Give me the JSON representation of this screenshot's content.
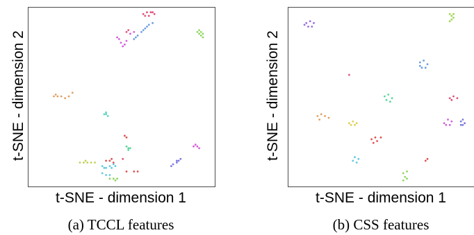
{
  "chart_data": [
    {
      "type": "scatter",
      "xlabel": "t-SNE - dimension 1",
      "ylabel": "t-SNE - dimension 2",
      "caption": "(a) TCCL features",
      "xlim": [
        0,
        100
      ],
      "ylim": [
        0,
        100
      ],
      "grid": false,
      "series": [
        {
          "color": "#e0507a",
          "points": [
            [
              62,
              96
            ],
            [
              64,
              97
            ],
            [
              66,
              97
            ],
            [
              68,
              96
            ],
            [
              65,
              95
            ],
            [
              63,
              95
            ],
            [
              67,
              97
            ]
          ]
        },
        {
          "color": "#6a9ee0",
          "points": [
            [
              57,
              82
            ],
            [
              59,
              84
            ],
            [
              61,
              86
            ],
            [
              63,
              88
            ],
            [
              65,
              90
            ],
            [
              67,
              91
            ],
            [
              58,
              83
            ],
            [
              62,
              87
            ],
            [
              64,
              89
            ]
          ]
        },
        {
          "color": "#d35fd8",
          "points": [
            [
              48,
              83
            ],
            [
              50,
              80
            ],
            [
              52,
              79
            ],
            [
              53,
              81
            ],
            [
              55,
              85
            ],
            [
              57,
              86
            ],
            [
              49,
              82
            ],
            [
              51,
              78
            ]
          ]
        },
        {
          "color": "#e0507a",
          "points": [
            [
              53,
              86
            ],
            [
              54,
              87
            ]
          ]
        },
        {
          "color": "#8fd660",
          "points": [
            [
              91,
              86
            ],
            [
              92,
              85
            ],
            [
              93,
              84
            ],
            [
              94,
              83
            ],
            [
              92,
              87
            ],
            [
              93,
              86
            ],
            [
              94,
              85
            ]
          ]
        },
        {
          "color": "#e0a060",
          "points": [
            [
              14,
              50
            ],
            [
              16,
              50
            ],
            [
              18,
              50
            ],
            [
              20,
              49
            ],
            [
              22,
              50
            ],
            [
              24,
              52
            ],
            [
              15,
              51
            ]
          ]
        },
        {
          "color": "#62d6c0",
          "points": [
            [
              41,
              40
            ],
            [
              42,
              40
            ],
            [
              43,
              39
            ],
            [
              42,
              41
            ]
          ]
        },
        {
          "color": "#e05050",
          "points": [
            [
              52,
              28
            ],
            [
              53,
              27
            ]
          ]
        },
        {
          "color": "#5ad6a0",
          "points": [
            [
              53,
              22
            ],
            [
              54,
              21
            ],
            [
              55,
              21
            ],
            [
              54,
              20
            ]
          ]
        },
        {
          "color": "#e0507a",
          "points": [
            [
              51,
              15
            ]
          ]
        },
        {
          "color": "#c0d050",
          "points": [
            [
              28,
              13
            ],
            [
              30,
              13
            ],
            [
              32,
              13
            ],
            [
              34,
              13
            ],
            [
              36,
              13
            ],
            [
              31,
              14
            ]
          ]
        },
        {
          "color": "#62c8e0",
          "points": [
            [
              40,
              11
            ],
            [
              42,
              10
            ],
            [
              44,
              11
            ],
            [
              46,
              12
            ],
            [
              47,
              11
            ],
            [
              45,
              10
            ],
            [
              41,
              10
            ]
          ]
        },
        {
          "color": "#e05050",
          "points": [
            [
              42,
              14
            ],
            [
              44,
              14
            ],
            [
              46,
              13
            ],
            [
              45,
              15
            ]
          ]
        },
        {
          "color": "#62c8e0",
          "points": [
            [
              40,
              7
            ],
            [
              42,
              6
            ],
            [
              44,
              6
            ]
          ]
        },
        {
          "color": "#8fd660",
          "points": [
            [
              44,
              4
            ],
            [
              46,
              4
            ],
            [
              48,
              4
            ],
            [
              47,
              3
            ]
          ]
        },
        {
          "color": "#e05050",
          "points": [
            [
              53,
              8
            ],
            [
              57,
              8
            ],
            [
              59,
              8
            ]
          ]
        },
        {
          "color": "#7a78e0",
          "points": [
            [
              78,
              12
            ],
            [
              80,
              13
            ],
            [
              81,
              14
            ],
            [
              82,
              15
            ],
            [
              80,
              14
            ],
            [
              77,
              11
            ]
          ]
        },
        {
          "color": "#d35fd8",
          "points": [
            [
              89,
              22
            ],
            [
              91,
              22
            ],
            [
              92,
              21
            ],
            [
              90,
              23
            ]
          ]
        }
      ]
    },
    {
      "type": "scatter",
      "xlabel": "t-SNE - dimension 1",
      "ylabel": "t-SNE - dimension 2",
      "caption": "(b) CSS features",
      "xlim": [
        0,
        100
      ],
      "ylim": [
        0,
        100
      ],
      "grid": false,
      "series": [
        {
          "color": "#9a6ee0",
          "points": [
            [
              10,
              91
            ],
            [
              12,
              92
            ],
            [
              14,
              91
            ],
            [
              13,
              89
            ],
            [
              11,
              89
            ],
            [
              9,
              90
            ]
          ]
        },
        {
          "color": "#a0d650",
          "points": [
            [
              87,
              96
            ],
            [
              88,
              95
            ],
            [
              89,
              94
            ],
            [
              88,
              93
            ],
            [
              87,
              92
            ],
            [
              89,
              96
            ]
          ]
        },
        {
          "color": "#6a9ee0",
          "points": [
            [
              71,
              69
            ],
            [
              73,
              70
            ],
            [
              75,
              68
            ],
            [
              74,
              66
            ],
            [
              72,
              66
            ],
            [
              71,
              67
            ]
          ]
        },
        {
          "color": "#e0507a",
          "points": [
            [
              33,
              62
            ]
          ]
        },
        {
          "color": "#5ad6a0",
          "points": [
            [
              52,
              50
            ],
            [
              54,
              51
            ],
            [
              56,
              49
            ],
            [
              55,
              47
            ],
            [
              53,
              48
            ]
          ]
        },
        {
          "color": "#e0507a",
          "points": [
            [
              87,
              49
            ],
            [
              89,
              50
            ],
            [
              91,
              49
            ],
            [
              88,
              48
            ]
          ]
        },
        {
          "color": "#e0a060",
          "points": [
            [
              16,
              39
            ],
            [
              18,
              40
            ],
            [
              20,
              39
            ],
            [
              22,
              38
            ],
            [
              17,
              37
            ]
          ]
        },
        {
          "color": "#e0d050",
          "points": [
            [
              33,
              35
            ],
            [
              35,
              36
            ],
            [
              37,
              35
            ],
            [
              36,
              34
            ],
            [
              34,
              34
            ]
          ]
        },
        {
          "color": "#d35fd8",
          "points": [
            [
              84,
              35
            ],
            [
              86,
              37
            ],
            [
              88,
              36
            ],
            [
              87,
              34
            ],
            [
              85,
              34
            ]
          ]
        },
        {
          "color": "#7a78e0",
          "points": [
            [
              93,
              36
            ],
            [
              94,
              37
            ],
            [
              95,
              35
            ],
            [
              94,
              34
            ],
            [
              93,
              34
            ]
          ]
        },
        {
          "color": "#e05050",
          "points": [
            [
              45,
              26
            ],
            [
              47,
              27
            ],
            [
              48,
              25
            ],
            [
              46,
              24
            ],
            [
              50,
              27
            ]
          ]
        },
        {
          "color": "#62c8e0",
          "points": [
            [
              35,
              14
            ],
            [
              36,
              16
            ],
            [
              38,
              15
            ],
            [
              37,
              13
            ]
          ]
        },
        {
          "color": "#e05050",
          "points": [
            [
              74,
              14
            ],
            [
              75,
              15
            ]
          ]
        },
        {
          "color": "#8fd660",
          "points": [
            [
              62,
              7
            ],
            [
              64,
              8
            ],
            [
              63,
              5
            ],
            [
              64,
              4
            ],
            [
              62,
              3
            ]
          ]
        }
      ]
    }
  ]
}
